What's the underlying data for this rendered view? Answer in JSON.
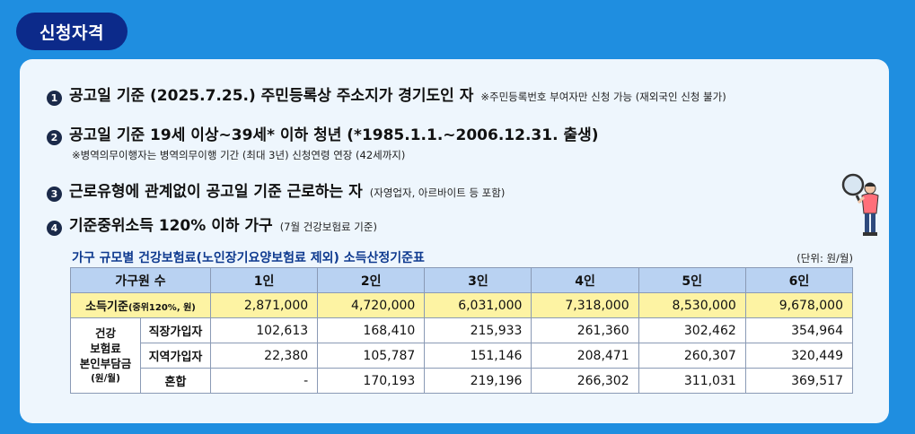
{
  "badge": "신청자격",
  "items": [
    {
      "num": "1",
      "main": "공고일 기준 (2025.7.25.) 주민등록상 주소지가 경기도인 자",
      "note": "※주민등록번호 부여자만 신청 가능 (재외국인 신청 불가)"
    },
    {
      "num": "2",
      "main": "공고일 기준 19세 이상~39세* 이하 청년 (*1985.1.1.~2006.12.31. 출생)",
      "sub": "※병역의무이행자는 병역의무이행 기간 (최대 3년) 신청연령 연장 (42세까지)"
    },
    {
      "num": "3",
      "main": "근로유형에 관계없이 공고일 기준 근로하는 자",
      "note": "(자영업자, 아르바이트 등 포함)"
    },
    {
      "num": "4",
      "main": "기준중위소득 120% 이하 가구",
      "note": "(7월 건강보험료 기준)"
    }
  ],
  "table": {
    "title": "가구 규모별 건강보험료(노인장기요양보험료 제외) 소득산정기준표",
    "unit": "(단위: 원/월)",
    "header_label": "가구원 수",
    "columns": [
      "1인",
      "2인",
      "3인",
      "4인",
      "5인",
      "6인"
    ],
    "income": {
      "label": "소득기준",
      "label_note": "(중위120%, 원)",
      "values": [
        "2,871,000",
        "4,720,000",
        "6,031,000",
        "7,318,000",
        "8,530,000",
        "9,678,000"
      ]
    },
    "group": {
      "line1": "건강",
      "line2": "보험료",
      "line3": "본인부담금",
      "line4": "(원/월)"
    },
    "rows": [
      {
        "label": "직장가입자",
        "values": [
          "102,613",
          "168,410",
          "215,933",
          "261,360",
          "302,462",
          "354,964"
        ]
      },
      {
        "label": "지역가입자",
        "values": [
          "22,380",
          "105,787",
          "151,146",
          "208,471",
          "260,307",
          "320,449"
        ]
      },
      {
        "label": "혼합",
        "values": [
          "-",
          "170,193",
          "219,196",
          "266,302",
          "311,031",
          "369,517"
        ]
      }
    ]
  }
}
